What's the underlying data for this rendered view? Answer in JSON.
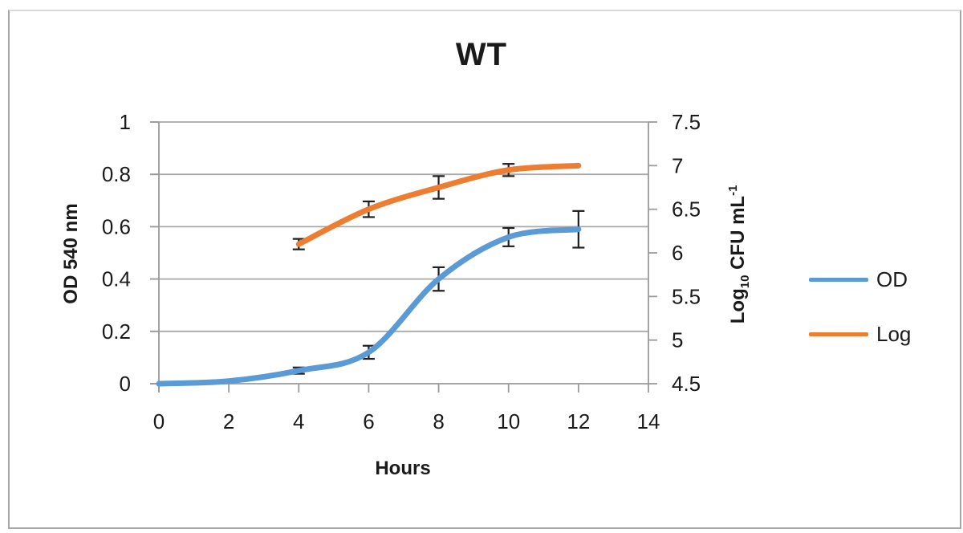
{
  "chart_data": {
    "type": "line",
    "title": "WT",
    "x_axis": {
      "label": "Hours",
      "min": 0,
      "max": 14,
      "ticks": [
        0,
        2,
        4,
        6,
        8,
        10,
        12,
        14
      ],
      "tick_labels": [
        "0",
        "2",
        "4",
        "6",
        "8",
        "10",
        "12",
        "14"
      ]
    },
    "left_axis": {
      "label": "OD 540 nm",
      "min": 0,
      "max": 1,
      "ticks": [
        0,
        0.2,
        0.4,
        0.6,
        0.8,
        1
      ],
      "tick_labels": [
        "0",
        "0.2",
        "0.4",
        "0.6",
        "0.8",
        "1"
      ],
      "gridlines": [
        0.2,
        0.4,
        0.6,
        0.8,
        1
      ]
    },
    "right_axis": {
      "label_pre": "Log",
      "label_sub": "10",
      "label_mid": " CFU mL",
      "label_sup": "-1",
      "min": 4.5,
      "max": 7.5,
      "ticks": [
        4.5,
        5,
        5.5,
        6,
        6.5,
        7,
        7.5
      ],
      "tick_labels": [
        "4.5",
        "5",
        "5.5",
        "6",
        "6.5",
        "7",
        "7.5"
      ]
    },
    "series": [
      {
        "name": "OD",
        "axis": "left",
        "color": "#5B9BD5",
        "x": [
          0,
          2,
          4,
          6,
          8,
          10,
          12
        ],
        "y": [
          0.0,
          0.01,
          0.05,
          0.12,
          0.4,
          0.56,
          0.59
        ],
        "err": [
          0,
          0,
          0.012,
          0.025,
          0.045,
          0.035,
          0.07
        ]
      },
      {
        "name": "Log",
        "axis": "right",
        "color": "#ED7D31",
        "x": [
          4,
          6,
          8,
          10,
          12
        ],
        "y": [
          6.1,
          6.5,
          6.75,
          6.95,
          7.0
        ],
        "err": [
          0.06,
          0.09,
          0.13,
          0.07,
          0
        ]
      }
    ],
    "legend_position": "right",
    "grid": {
      "horizontal": true,
      "vertical": false
    },
    "colors": {
      "gridline": "#a8a8a8",
      "axis_line": "#9a9a9a",
      "error_bar": "#1f1f1f",
      "text": "#1a1a1a",
      "border": "#a6a6a6"
    }
  }
}
